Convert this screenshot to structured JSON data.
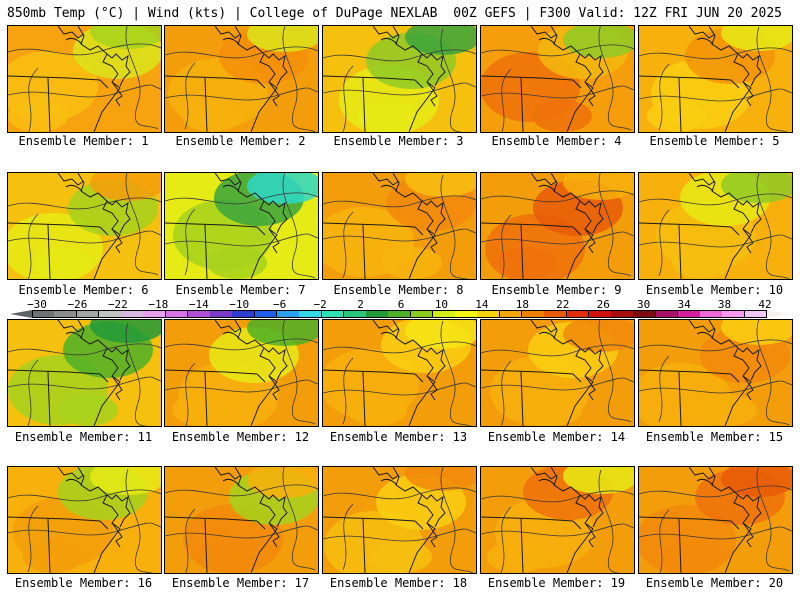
{
  "header": {
    "left": "850mb Temp (°C) | Wind (kts) | College of DuPage NEXLAB",
    "right": "00Z GEFS | F300 Valid: 12Z FRI JUN 20 2025"
  },
  "colorbar": {
    "labels": [
      "−30",
      "−26",
      "−22",
      "−18",
      "−14",
      "−10",
      "−6",
      "−2",
      "2",
      "6",
      "10",
      "14",
      "18",
      "22",
      "26",
      "30",
      "34",
      "38",
      "42"
    ],
    "colors": [
      "#6e7474",
      "#8a8e8d",
      "#a4a6a5",
      "#c2c4c4",
      "#d8b8e0",
      "#e89ff0",
      "#d873e8",
      "#b050d8",
      "#7a3cc8",
      "#2c3ed0",
      "#2060e8",
      "#2ca0f0",
      "#33d8e8",
      "#30e0b8",
      "#28c878",
      "#229a38",
      "#4eb028",
      "#8ccc20",
      "#d4ec1c",
      "#f5f515",
      "#f5d40f",
      "#f2a60a",
      "#ee8008",
      "#e85a08",
      "#e22c0c",
      "#d21010",
      "#a80e0e",
      "#7c0c10",
      "#a8106a",
      "#d41e9e",
      "#ef68d8",
      "#f59af0",
      "#f0c8f5"
    ]
  },
  "members": [
    {
      "label": "Ensemble Member: 1",
      "palette": [
        "#f7a20f",
        "#f9bf10",
        "#dbe51a",
        "#a6d21c"
      ]
    },
    {
      "label": "Ensemble Member: 2",
      "palette": [
        "#f39d0a",
        "#f6b10d",
        "#f58f08",
        "#dbe51a"
      ]
    },
    {
      "label": "Ensemble Member: 3",
      "palette": [
        "#f6c00f",
        "#e6ea15",
        "#8fca24",
        "#3aa43c"
      ]
    },
    {
      "label": "Ensemble Member: 4",
      "palette": [
        "#f59d0a",
        "#ee720b",
        "#f3b80f",
        "#8fca24"
      ]
    },
    {
      "label": "Ensemble Member: 5",
      "palette": [
        "#f7b00c",
        "#f9cf12",
        "#f39408",
        "#e6ea15"
      ]
    },
    {
      "label": "Ensemble Member: 6",
      "palette": [
        "#f6c00f",
        "#e6ea15",
        "#a6d21c",
        "#f39d0a"
      ]
    },
    {
      "label": "Ensemble Member: 7",
      "palette": [
        "#e6ea15",
        "#a6d21c",
        "#3aa43c",
        "#2ed8c8"
      ]
    },
    {
      "label": "Ensemble Member: 8",
      "palette": [
        "#f39d0a",
        "#f7b50d",
        "#f2890a",
        "#f6c00f"
      ]
    },
    {
      "label": "Ensemble Member: 9",
      "palette": [
        "#f39d0a",
        "#ee720b",
        "#e85a08",
        "#f7b00c"
      ]
    },
    {
      "label": "Ensemble Member: 10",
      "palette": [
        "#f7b00c",
        "#f6c00f",
        "#e6ea15",
        "#8fca24"
      ]
    },
    {
      "label": "Ensemble Member: 11",
      "palette": [
        "#f6c00f",
        "#a6d21c",
        "#4eb028",
        "#229a38"
      ]
    },
    {
      "label": "Ensemble Member: 12",
      "palette": [
        "#f39d0a",
        "#f7b00c",
        "#e6ea15",
        "#4eb028"
      ]
    },
    {
      "label": "Ensemble Member: 13",
      "palette": [
        "#f39d0a",
        "#f7b00c",
        "#f9cf12",
        "#f5e515"
      ]
    },
    {
      "label": "Ensemble Member: 14",
      "palette": [
        "#f39d0a",
        "#f7b00c",
        "#f9cf12",
        "#f2890a"
      ]
    },
    {
      "label": "Ensemble Member: 15",
      "palette": [
        "#f39d0a",
        "#f7b00c",
        "#f2890a",
        "#f9cf12"
      ]
    },
    {
      "label": "Ensemble Member: 16",
      "palette": [
        "#f7b00c",
        "#f39d0a",
        "#a6d21c",
        "#e6ea15"
      ]
    },
    {
      "label": "Ensemble Member: 17",
      "palette": [
        "#f39d0a",
        "#f2890a",
        "#a6d21c",
        "#f7b00c"
      ]
    },
    {
      "label": "Ensemble Member: 18",
      "palette": [
        "#f39d0a",
        "#f6c00f",
        "#f9cf12",
        "#f2890a"
      ]
    },
    {
      "label": "Ensemble Member: 19",
      "palette": [
        "#f39d0a",
        "#f7b00c",
        "#ee720b",
        "#e6ea15"
      ]
    },
    {
      "label": "Ensemble Member: 20",
      "palette": [
        "#f39d0a",
        "#f2890a",
        "#ee720b",
        "#e85a08"
      ]
    }
  ]
}
